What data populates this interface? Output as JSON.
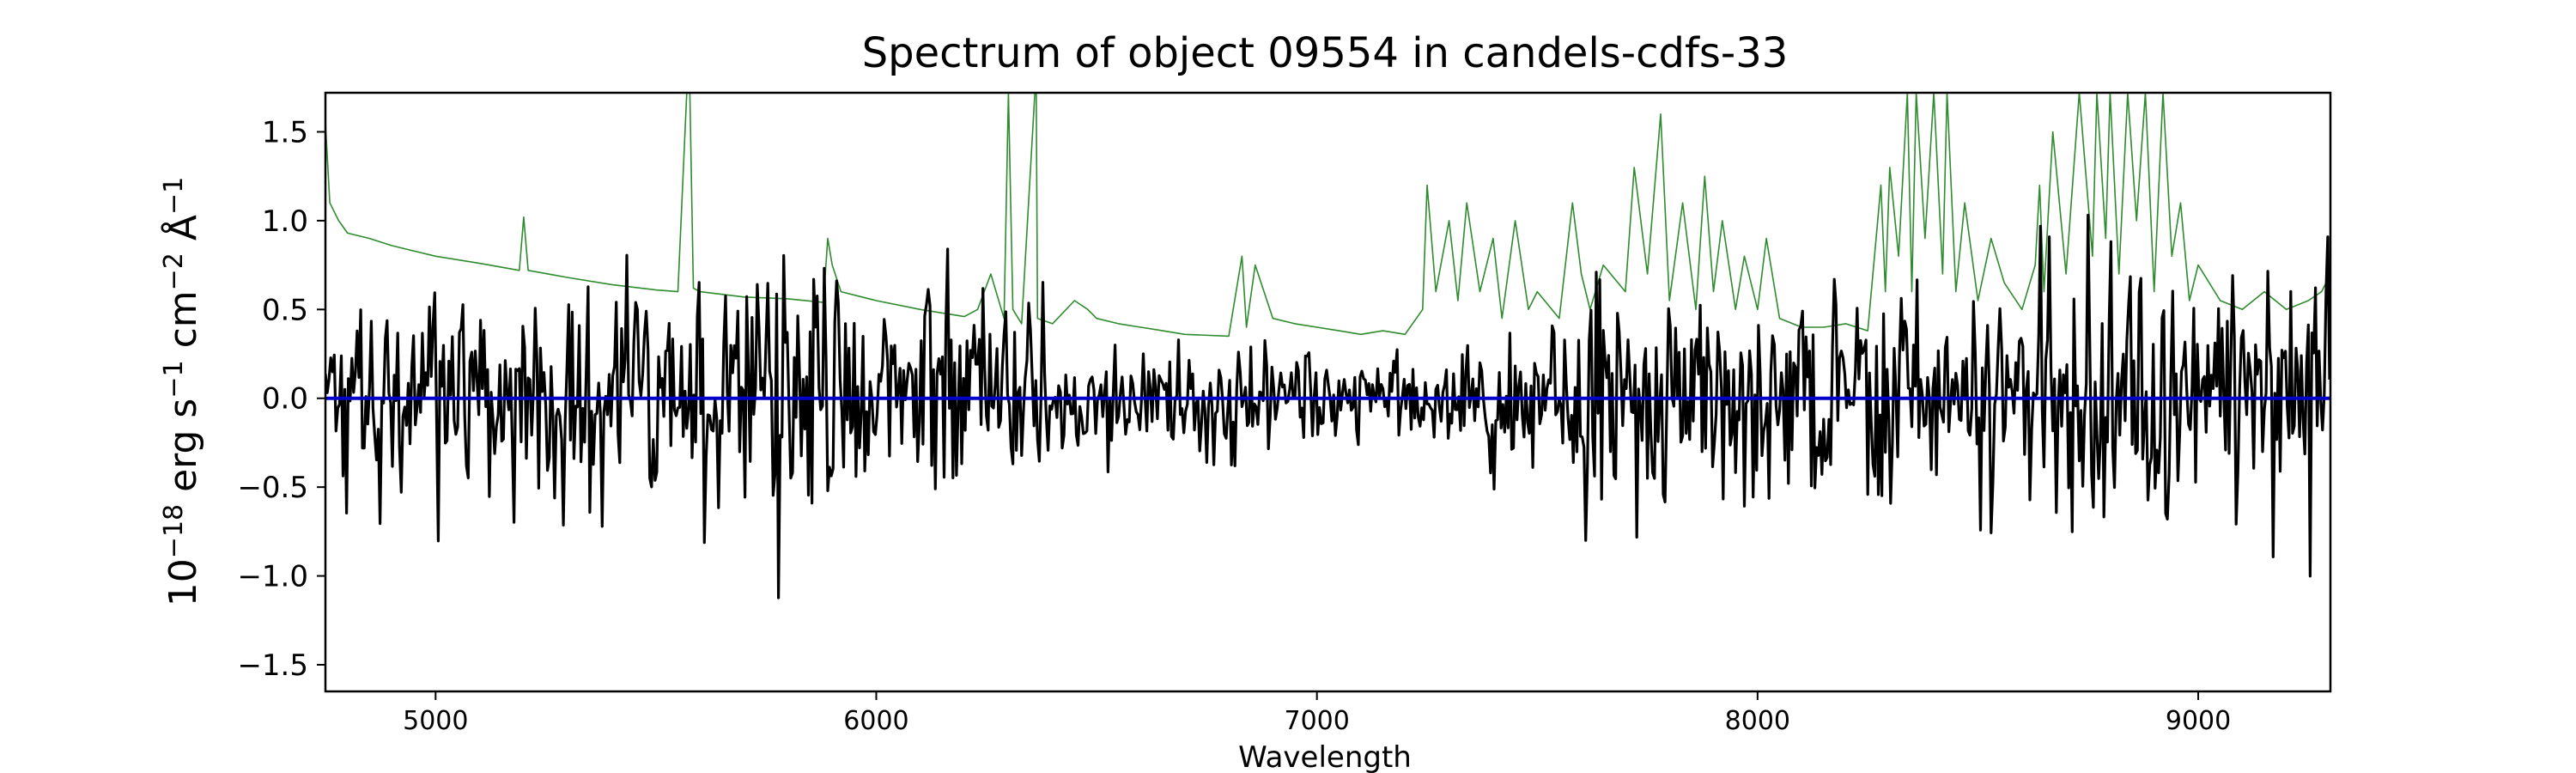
{
  "chart_data": {
    "type": "line",
    "title": "Spectrum of object 09554 in candels-cdfs-33",
    "xlabel": "Wavelength",
    "ylabel_base": "10",
    "ylabel_exp": "−18",
    "ylabel_unit1": " erg s",
    "ylabel_exp1": "−1",
    "ylabel_unit2": " cm",
    "ylabel_exp2": "−2",
    "ylabel_unit3": " Å",
    "ylabel_exp3": "−1",
    "xlim": [
      4750,
      9300
    ],
    "ylim": [
      -1.65,
      1.72
    ],
    "x_ticks": [
      5000,
      6000,
      7000,
      8000,
      9000
    ],
    "x_tick_labels": [
      "5000",
      "6000",
      "7000",
      "8000",
      "9000"
    ],
    "y_ticks": [
      -1.5,
      -1.0,
      -0.5,
      0.0,
      0.5,
      1.0,
      1.5
    ],
    "y_tick_labels": [
      "−1.5",
      "−1.0",
      "−0.5",
      "0.0",
      "0.5",
      "1.0",
      "1.5"
    ],
    "grid": false,
    "series": [
      {
        "role": "zero-level",
        "color": "#0000cc",
        "x": [
          4750,
          9300
        ],
        "y": [
          0.0,
          0.0
        ]
      },
      {
        "role": "error",
        "color": "#2e8b2e",
        "x": [
          4750,
          4760,
          4780,
          4800,
          4850,
          4900,
          4950,
          5000,
          5100,
          5190,
          5200,
          5210,
          5300,
          5400,
          5500,
          5550,
          5570,
          5577,
          5585,
          5600,
          5700,
          5800,
          5880,
          5890,
          5900,
          5920,
          6000,
          6100,
          6200,
          6230,
          6260,
          6290,
          6300,
          6310,
          6330,
          6360,
          6363,
          6366,
          6400,
          6450,
          6480,
          6500,
          6550,
          6600,
          6650,
          6700,
          6800,
          6830,
          6840,
          6860,
          6900,
          6950,
          7000,
          7050,
          7100,
          7150,
          7200,
          7240,
          7250,
          7270,
          7300,
          7320,
          7340,
          7370,
          7400,
          7420,
          7450,
          7480,
          7500,
          7550,
          7580,
          7600,
          7620,
          7650,
          7700,
          7720,
          7750,
          7780,
          7800,
          7830,
          7860,
          7880,
          7900,
          7920,
          7950,
          7970,
          8000,
          8020,
          8050,
          8100,
          8150,
          8200,
          8250,
          8280,
          8290,
          8300,
          8320,
          8340,
          8350,
          8360,
          8380,
          8400,
          8420,
          8430,
          8450,
          8470,
          8500,
          8530,
          8560,
          8600,
          8630,
          8640,
          8650,
          8670,
          8700,
          8730,
          8760,
          8770,
          8790,
          8800,
          8820,
          8840,
          8860,
          8880,
          8900,
          8920,
          8940,
          8960,
          8980,
          9000,
          9050,
          9100,
          9150,
          9200,
          9250,
          9280,
          9300
        ],
        "y": [
          1.55,
          1.1,
          1.0,
          0.93,
          0.9,
          0.86,
          0.83,
          0.8,
          0.76,
          0.72,
          1.02,
          0.72,
          0.68,
          0.64,
          0.61,
          0.6,
          1.72,
          1.72,
          0.62,
          0.6,
          0.57,
          0.56,
          0.54,
          0.9,
          0.75,
          0.6,
          0.55,
          0.5,
          0.46,
          0.5,
          0.7,
          0.45,
          1.72,
          0.5,
          0.42,
          1.72,
          1.72,
          0.45,
          0.42,
          0.55,
          0.5,
          0.45,
          0.42,
          0.4,
          0.38,
          0.36,
          0.35,
          0.8,
          0.4,
          0.75,
          0.45,
          0.42,
          0.4,
          0.38,
          0.36,
          0.38,
          0.36,
          0.5,
          1.2,
          0.6,
          1.0,
          0.55,
          1.1,
          0.6,
          0.9,
          0.45,
          1.0,
          0.5,
          0.6,
          0.45,
          1.1,
          0.7,
          0.5,
          0.75,
          0.6,
          1.3,
          0.7,
          1.6,
          0.55,
          1.1,
          0.5,
          1.25,
          0.6,
          1.0,
          0.5,
          0.8,
          0.5,
          0.9,
          0.45,
          0.4,
          0.4,
          0.42,
          0.38,
          1.2,
          0.6,
          1.3,
          0.8,
          1.72,
          0.6,
          1.72,
          0.9,
          1.72,
          0.7,
          1.72,
          0.6,
          1.1,
          0.55,
          0.9,
          0.65,
          0.5,
          0.75,
          1.2,
          0.6,
          1.5,
          0.7,
          1.72,
          0.8,
          1.72,
          0.9,
          1.72,
          0.7,
          1.72,
          1.0,
          1.72,
          0.6,
          1.72,
          0.8,
          1.1,
          0.55,
          0.75,
          0.55,
          0.5,
          0.6,
          0.5,
          0.55,
          0.6,
          0.7
        ]
      },
      {
        "role": "flux",
        "color": "#000000",
        "x": [],
        "y": []
      }
    ]
  }
}
